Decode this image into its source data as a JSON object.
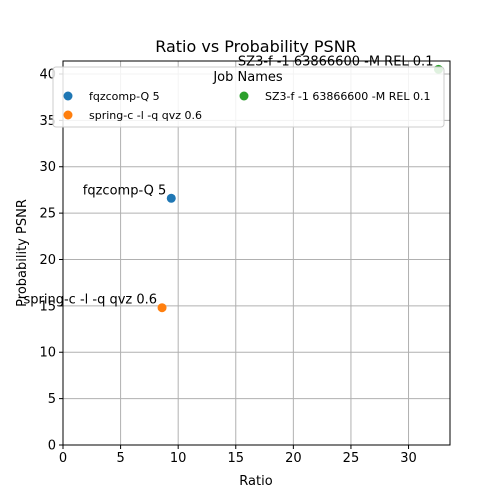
{
  "chart_data": {
    "type": "scatter",
    "title": "Ratio vs Probability PSNR",
    "xlabel": "Ratio",
    "ylabel": "Probability PSNR",
    "xlim": [
      0,
      33.6
    ],
    "ylim": [
      0,
      41.4
    ],
    "xticks": [
      0,
      5,
      10,
      15,
      20,
      25,
      30
    ],
    "yticks": [
      0,
      5,
      10,
      15,
      20,
      25,
      30,
      35,
      40
    ],
    "grid": true,
    "legend": {
      "title": "Job Names",
      "placement": "top",
      "columns": 2
    },
    "series": [
      {
        "name": "fqzcomp-Q 5",
        "color": "#1f77b4",
        "points": [
          {
            "x": 9.4,
            "y": 26.6,
            "label": "fqzcomp-Q 5"
          }
        ]
      },
      {
        "name": "spring-c -l -q qvz 0.6",
        "color": "#ff7f0e",
        "points": [
          {
            "x": 8.6,
            "y": 14.8,
            "label": "spring-c -l -q qvz 0.6"
          }
        ]
      },
      {
        "name": "SZ3-f -1 63866600 -M REL 0.1",
        "color": "#2ca02c",
        "points": [
          {
            "x": 32.6,
            "y": 40.5,
            "label": "SZ3-f -1 63866600 -M REL 0.1"
          }
        ]
      }
    ]
  }
}
